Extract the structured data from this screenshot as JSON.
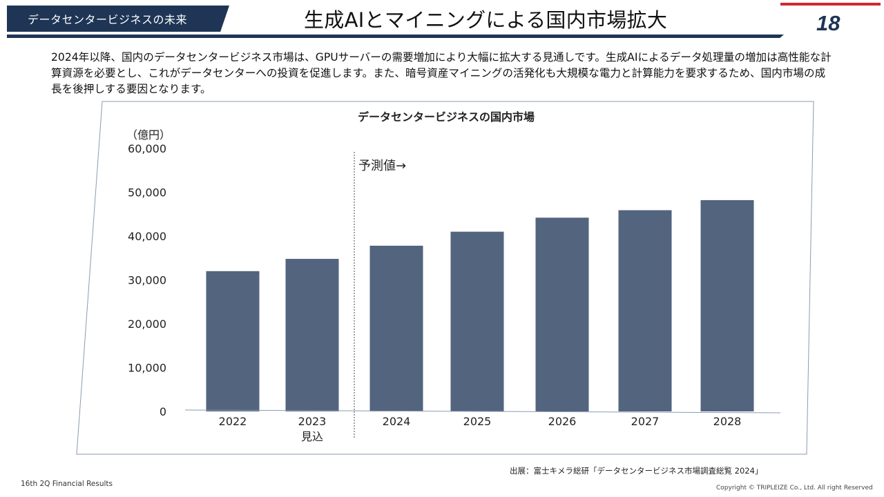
{
  "header": {
    "section_tag": "データセンタービジネスの未来",
    "title": "生成AIとマイニングによる国内市場拡大",
    "page_number": "18",
    "accent_color": "#d52430",
    "brand_color": "#1e3555"
  },
  "intro_text": "2024年以降、国内のデータセンタービジネス市場は、GPUサーバーの需要増加により大幅に拡大する見通しです。生成AIによるデータ処理量の増加は高性能な計算資源を必要とし、これがデータセンターへの投資を促進します。また、暗号資産マイニングの活発化も大規模な電力と計算能力を要求するため、国内市場の成長を後押しする要因となります。",
  "chart_data": {
    "type": "bar",
    "title": "データセンタービジネスの国内市場",
    "unit_label": "（億円）",
    "forecast_label": "予測値→",
    "categories": [
      "2022",
      "2023\n見込",
      "2024",
      "2025",
      "2026",
      "2027",
      "2028"
    ],
    "values": [
      32000,
      34800,
      37800,
      41000,
      44200,
      45900,
      48200
    ],
    "ylim": [
      0,
      60000
    ],
    "yticks": [
      "0",
      "10,000",
      "20,000",
      "30,000",
      "40,000",
      "50,000",
      "60,000"
    ],
    "bar_color": "#52647e",
    "forecast_start_index": 2,
    "grid": false,
    "legend": "none"
  },
  "source": "出展：富士キメラ総研「データセンタービジネス市場調査総覧 2024」",
  "footer": {
    "left": "16th 2Q Financial Results",
    "right": "Copyright © TRIPLEIZE Co., Ltd.  All right Reserved"
  }
}
